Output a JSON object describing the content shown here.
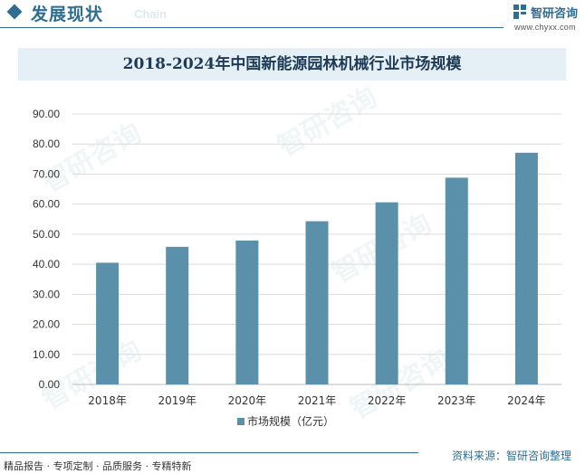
{
  "header": {
    "section_title": "发展现状",
    "section_subtitle": "Chain",
    "logo_text": "智研咨询",
    "logo_url": "www.chyxx.com"
  },
  "legend": {
    "label": "市场规模（亿元）"
  },
  "footer": {
    "tags": "精品报告 · 专项定制 · 品质服务 · 专精特新",
    "source": "资料来源：智研咨询整理"
  },
  "colors": {
    "bar": "#5b90aa",
    "accent": "#2f6e93",
    "title_band": "#e4eff6"
  },
  "chart_data": {
    "type": "bar",
    "title": "2018-2024年中国新能源园林机械行业市场规模",
    "categories": [
      "2018年",
      "2019年",
      "2020年",
      "2021年",
      "2022年",
      "2023年",
      "2024年"
    ],
    "series": [
      {
        "name": "市场规模（亿元）",
        "values": [
          40.5,
          45.8,
          47.9,
          54.3,
          60.6,
          68.8,
          77.1
        ]
      }
    ],
    "ylim": [
      0,
      90
    ],
    "yticks": [
      "0.00",
      "10.00",
      "20.00",
      "30.00",
      "40.00",
      "50.00",
      "60.00",
      "70.00",
      "80.00",
      "90.00"
    ],
    "grid": true,
    "legend_position": "bottom"
  }
}
